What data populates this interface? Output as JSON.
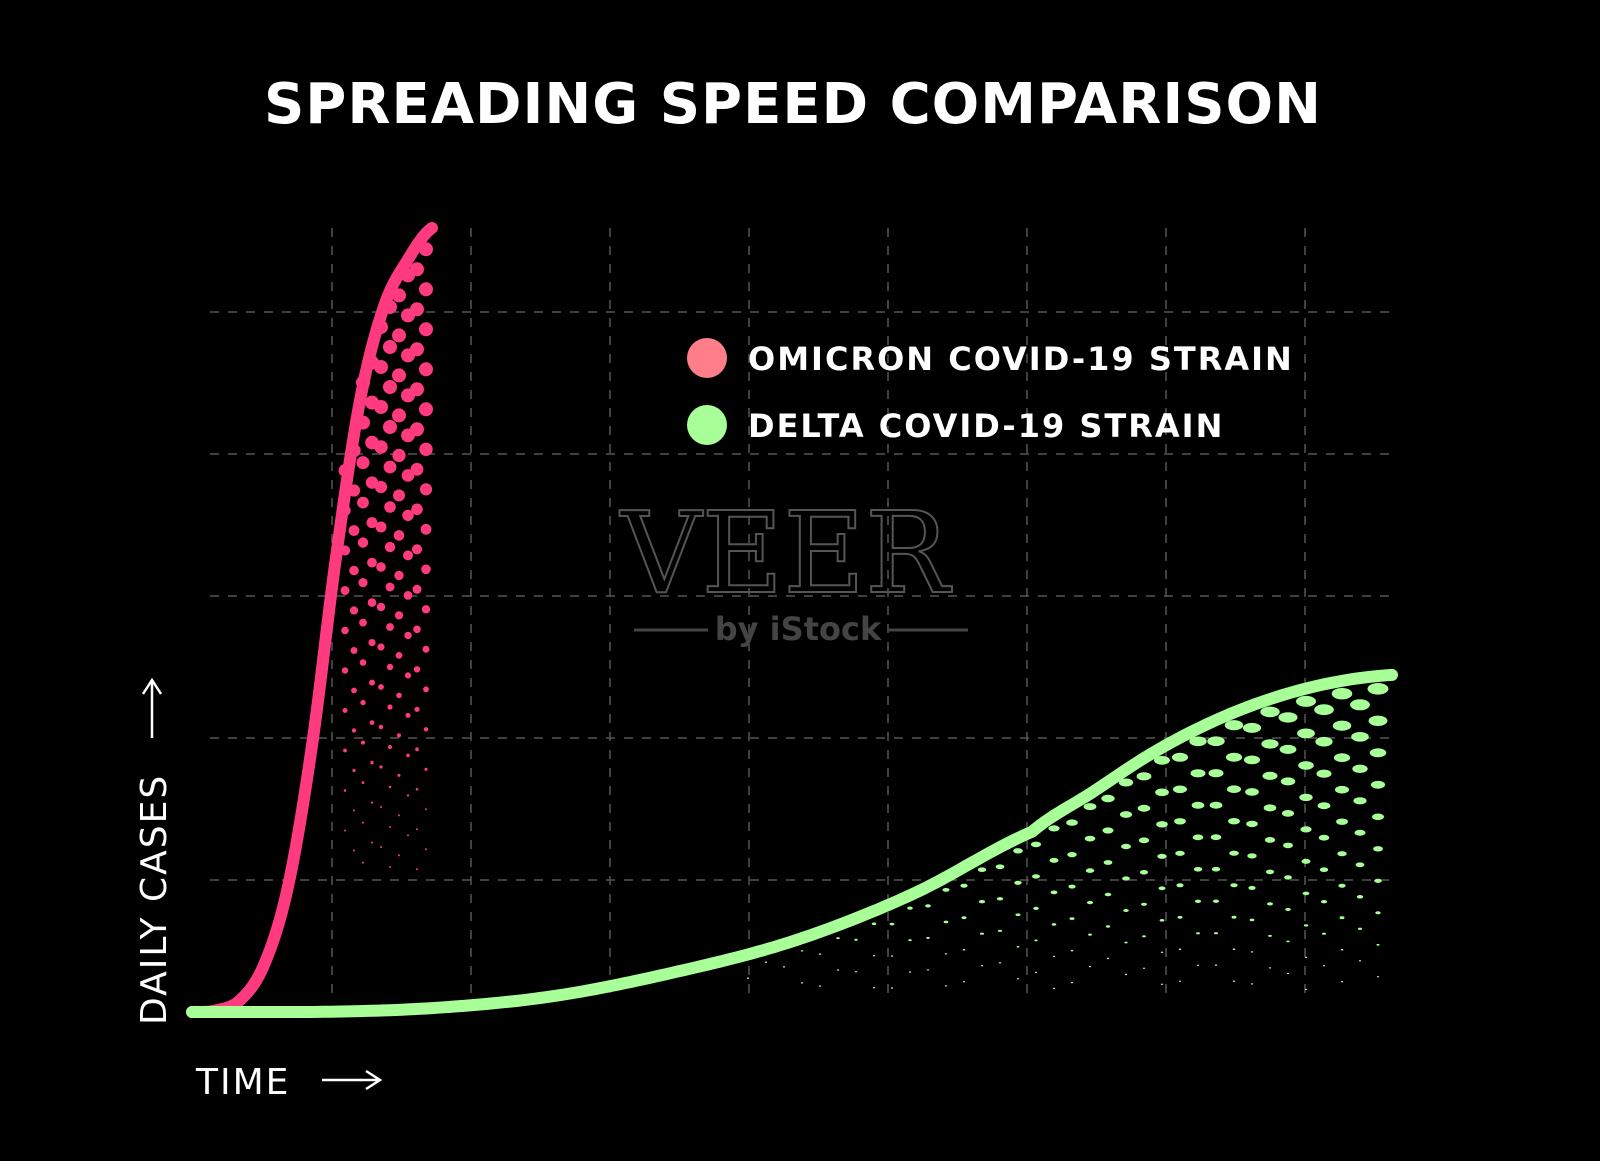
{
  "chart_data": {
    "type": "line",
    "title": "SPREADING SPEED COMPARISON",
    "xlabel": "TIME",
    "ylabel": "DAILY CASES",
    "grid": true,
    "legend_placement": "top-right",
    "x": [
      0,
      0.05,
      0.1,
      0.15,
      0.2,
      0.25,
      0.3,
      0.35,
      0.4,
      0.45,
      0.5,
      0.55,
      0.6,
      0.65,
      0.7,
      0.75,
      0.8,
      0.85,
      0.9,
      0.95,
      1.0
    ],
    "xlim": [
      0,
      1
    ],
    "ylim": [
      0,
      1
    ],
    "series": [
      {
        "name": "OMICRON COVID-19 STRAIN",
        "color": "#ff3a7e",
        "legend_color": "#ff7e89",
        "x": [
          0,
          0.02,
          0.04,
          0.06,
          0.08,
          0.1,
          0.12,
          0.14,
          0.16,
          0.18,
          0.2
        ],
        "values": [
          0.0,
          0.002,
          0.015,
          0.06,
          0.16,
          0.34,
          0.58,
          0.78,
          0.9,
          0.96,
          1.0
        ]
      },
      {
        "name": "DELTA COVID-19 STRAIN",
        "color": "#a8ff98",
        "legend_color": "#a8ff98",
        "x": [
          0,
          0.1,
          0.2,
          0.3,
          0.4,
          0.5,
          0.6,
          0.7,
          0.75,
          0.8,
          0.85,
          0.9,
          0.95,
          1.0
        ],
        "values": [
          0.0,
          0.0,
          0.005,
          0.02,
          0.05,
          0.09,
          0.15,
          0.23,
          0.28,
          0.33,
          0.37,
          0.4,
          0.42,
          0.43
        ]
      }
    ]
  },
  "watermark": {
    "main": "VEER",
    "sub": "by iStock"
  }
}
